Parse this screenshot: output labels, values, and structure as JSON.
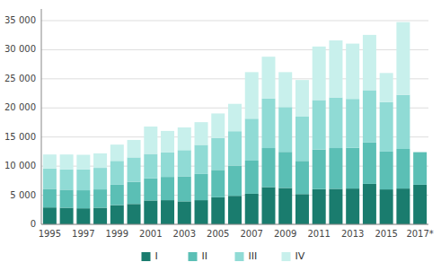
{
  "chart_data": {
    "type": "bar",
    "stacked": true,
    "grid": true,
    "legend": "bottom",
    "categories": [
      "1995",
      null,
      "1997",
      null,
      "1999",
      null,
      "2001",
      null,
      "2003",
      null,
      "2005",
      null,
      "2007",
      null,
      "2009",
      null,
      "2011",
      null,
      "2013",
      null,
      "2015",
      null,
      "2017*"
    ],
    "series": [
      {
        "name": "I",
        "color": "#1a7c6e",
        "values": [
          2900,
          2850,
          2750,
          2850,
          3300,
          3500,
          4100,
          4150,
          3950,
          4150,
          4650,
          4900,
          5250,
          6400,
          6250,
          5200,
          6050,
          6100,
          6150,
          6950,
          6000,
          6150,
          6800
        ]
      },
      {
        "name": "II",
        "color": "#5bbfb5",
        "values": [
          3200,
          3100,
          3100,
          3150,
          3500,
          3800,
          3800,
          4000,
          4300,
          4500,
          4700,
          5200,
          5700,
          6700,
          6200,
          5700,
          6800,
          7000,
          7000,
          7100,
          6500,
          6800,
          5600
        ]
      },
      {
        "name": "III",
        "color": "#90dbd5",
        "values": [
          3500,
          3500,
          3600,
          3700,
          4100,
          4200,
          4200,
          4200,
          4500,
          5000,
          5500,
          5900,
          7200,
          8500,
          7700,
          7600,
          8500,
          8700,
          8400,
          9000,
          8500,
          9300,
          0
        ]
      },
      {
        "name": "IV",
        "color": "#c8f0ec",
        "values": [
          2400,
          2550,
          2500,
          2500,
          2800,
          3000,
          4700,
          3700,
          3900,
          3900,
          4200,
          4700,
          8000,
          7200,
          6000,
          6300,
          9200,
          9800,
          9500,
          9500,
          5000,
          12500,
          0
        ]
      }
    ],
    "ylim": [
      0,
      37000
    ],
    "yticks": [
      0,
      {
        "value": 5000,
        "label": "5 000"
      },
      {
        "value": 10000,
        "label": "10 000"
      },
      {
        "value": 15000,
        "label": "15 000"
      },
      {
        "value": 20000,
        "label": "20 000"
      },
      {
        "value": 25000,
        "label": "25 000"
      },
      {
        "value": 30000,
        "label": "30 000"
      },
      {
        "value": 35000,
        "label": "35 000"
      }
    ]
  }
}
